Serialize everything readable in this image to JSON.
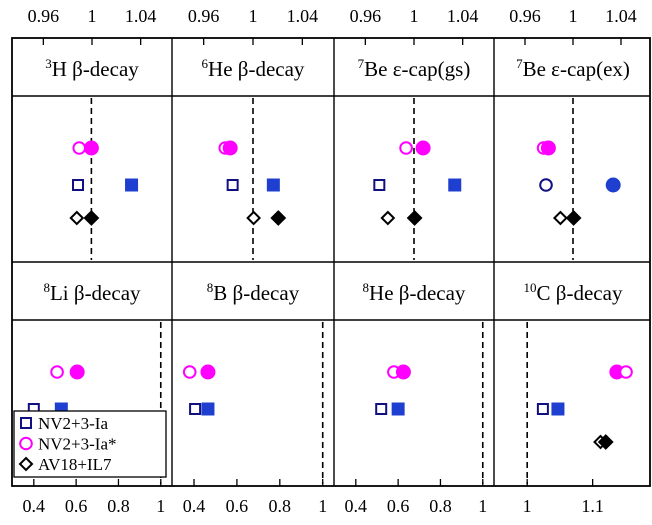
{
  "chart_data": {
    "type": "scatter",
    "grid": false,
    "legend_placement": "bottom-left",
    "legend": [
      {
        "key": "open_square",
        "label": "NV2+3-Ia"
      },
      {
        "key": "open_circle",
        "label": "NV2+3-Ia*"
      },
      {
        "key": "open_diamond",
        "label": "AV18+IL7"
      }
    ],
    "colors": {
      "blue": "#1f3fd0",
      "magenta": "#ff00ff",
      "navy": "#101080",
      "black": "#000000"
    },
    "top_axis": {
      "lim": [
        0.94,
        1.06
      ],
      "ticks": [
        0.96,
        1,
        1.04
      ],
      "tick_labels": [
        "0.96",
        "1",
        "1.04"
      ]
    },
    "bottom_axes": [
      {
        "lim": [
          0.33,
          1.02
        ],
        "ticks": [
          0.4,
          0.6,
          0.8,
          1
        ],
        "tick_labels": [
          "0.4",
          "0.6",
          "0.8",
          "1"
        ]
      },
      {
        "lim": [
          0.33,
          1.02
        ],
        "ticks": [
          0.4,
          0.6,
          0.8,
          1
        ],
        "tick_labels": [
          "0.4",
          "0.6",
          "0.8",
          "1"
        ]
      },
      {
        "lim": [
          0.33,
          1.02
        ],
        "ticks": [
          0.4,
          0.6,
          0.8,
          1
        ],
        "tick_labels": [
          "0.4",
          "0.6",
          "0.8",
          "1"
        ]
      },
      {
        "lim": [
          0.96,
          1.18
        ],
        "ticks": [
          1,
          1.1
        ],
        "tick_labels": [
          "1",
          "1.1"
        ]
      }
    ],
    "rows": [
      {
        "panels": [
          {
            "title_sup": "3",
            "title": "H β-decay",
            "ref_x": 0.9995,
            "series": [
              {
                "marker": "open_circle",
                "color": "#ff00ff",
                "x": 0.9895,
                "y": 3
              },
              {
                "marker": "filled_circle",
                "color": "#ff00ff",
                "x": 0.9995,
                "y": 3
              },
              {
                "marker": "open_square",
                "color": "#101080",
                "x": 0.9885,
                "y": 2
              },
              {
                "marker": "filled_square",
                "color": "#1f3fd0",
                "x": 1.0325,
                "y": 2
              },
              {
                "marker": "open_diamond",
                "color": "#000000",
                "x": 0.9875,
                "y": 1
              },
              {
                "marker": "filled_diamond",
                "color": "#000000",
                "x": 0.9995,
                "y": 1
              }
            ]
          },
          {
            "title_sup": "6",
            "title": "He β-decay",
            "ref_x": 1.0,
            "series": [
              {
                "marker": "open_circle",
                "color": "#ff00ff",
                "x": 0.9775,
                "y": 3
              },
              {
                "marker": "filled_circle",
                "color": "#ff00ff",
                "x": 0.9815,
                "y": 3
              },
              {
                "marker": "open_square",
                "color": "#101080",
                "x": 0.9835,
                "y": 2
              },
              {
                "marker": "filled_square",
                "color": "#1f3fd0",
                "x": 1.0165,
                "y": 2
              },
              {
                "marker": "open_diamond",
                "color": "#000000",
                "x": 1.0005,
                "y": 1
              },
              {
                "marker": "filled_diamond",
                "color": "#000000",
                "x": 1.0205,
                "y": 1
              }
            ]
          },
          {
            "title_sup": "7",
            "title": "Be ε-cap(gs)",
            "ref_x": 1.0,
            "series": [
              {
                "marker": "open_circle",
                "color": "#ff00ff",
                "x": 0.9935,
                "y": 3
              },
              {
                "marker": "filled_circle",
                "color": "#ff00ff",
                "x": 1.0075,
                "y": 3
              },
              {
                "marker": "open_square",
                "color": "#101080",
                "x": 0.9715,
                "y": 2
              },
              {
                "marker": "filled_square",
                "color": "#1f3fd0",
                "x": 1.0335,
                "y": 2
              },
              {
                "marker": "open_diamond",
                "color": "#000000",
                "x": 0.9785,
                "y": 1
              },
              {
                "marker": "filled_diamond",
                "color": "#000000",
                "x": 1.0005,
                "y": 1
              }
            ]
          },
          {
            "title_sup": "7",
            "title": "Be ε-cap(ex)",
            "ref_x": 1.0,
            "series": [
              {
                "marker": "open_circle",
                "color": "#ff00ff",
                "x": 0.9755,
                "y": 3
              },
              {
                "marker": "filled_circle",
                "color": "#ff00ff",
                "x": 0.9795,
                "y": 3
              },
              {
                "marker": "open_circle",
                "color": "#101080",
                "x": 0.9775,
                "y": 2
              },
              {
                "marker": "filled_circle",
                "color": "#1f3fd0",
                "x": 1.0335,
                "y": 2
              },
              {
                "marker": "open_diamond",
                "color": "#000000",
                "x": 0.9895,
                "y": 1
              },
              {
                "marker": "filled_diamond",
                "color": "#000000",
                "x": 1.0005,
                "y": 1
              }
            ]
          }
        ]
      },
      {
        "panels": [
          {
            "title_sup": "8",
            "title": "Li β-decay",
            "ref_x": 1.0,
            "series": [
              {
                "marker": "open_circle",
                "color": "#ff00ff",
                "x": 0.51,
                "y": 3
              },
              {
                "marker": "filled_circle",
                "color": "#ff00ff",
                "x": 0.605,
                "y": 3
              },
              {
                "marker": "open_square",
                "color": "#101080",
                "x": 0.4,
                "y": 2
              },
              {
                "marker": "filled_square",
                "color": "#1f3fd0",
                "x": 0.53,
                "y": 2
              }
            ]
          },
          {
            "title_sup": "8",
            "title": "B β-decay",
            "ref_x": 1.0,
            "series": [
              {
                "marker": "open_circle",
                "color": "#ff00ff",
                "x": 0.38,
                "y": 3
              },
              {
                "marker": "filled_circle",
                "color": "#ff00ff",
                "x": 0.465,
                "y": 3
              },
              {
                "marker": "open_square",
                "color": "#101080",
                "x": 0.405,
                "y": 2
              },
              {
                "marker": "filled_square",
                "color": "#1f3fd0",
                "x": 0.465,
                "y": 2
              }
            ]
          },
          {
            "title_sup": "8",
            "title": "He β-decay",
            "ref_x": 1.0,
            "series": [
              {
                "marker": "open_circle",
                "color": "#ff00ff",
                "x": 0.58,
                "y": 3
              },
              {
                "marker": "filled_circle",
                "color": "#ff00ff",
                "x": 0.625,
                "y": 3
              },
              {
                "marker": "open_square",
                "color": "#101080",
                "x": 0.52,
                "y": 2
              },
              {
                "marker": "filled_square",
                "color": "#1f3fd0",
                "x": 0.6,
                "y": 2
              }
            ]
          },
          {
            "title_sup": "10",
            "title": "C β-decay",
            "ref_x": 1.0,
            "series": [
              {
                "marker": "filled_circle",
                "color": "#ff00ff",
                "x": 1.137,
                "y": 3
              },
              {
                "marker": "open_circle",
                "color": "#ff00ff",
                "x": 1.151,
                "y": 3
              },
              {
                "marker": "open_square",
                "color": "#101080",
                "x": 1.024,
                "y": 2
              },
              {
                "marker": "filled_square",
                "color": "#1f3fd0",
                "x": 1.047,
                "y": 2
              },
              {
                "marker": "open_diamond",
                "color": "#000000",
                "x": 1.112,
                "y": 1
              },
              {
                "marker": "filled_diamond",
                "color": "#000000",
                "x": 1.12,
                "y": 1
              }
            ]
          }
        ]
      }
    ]
  }
}
